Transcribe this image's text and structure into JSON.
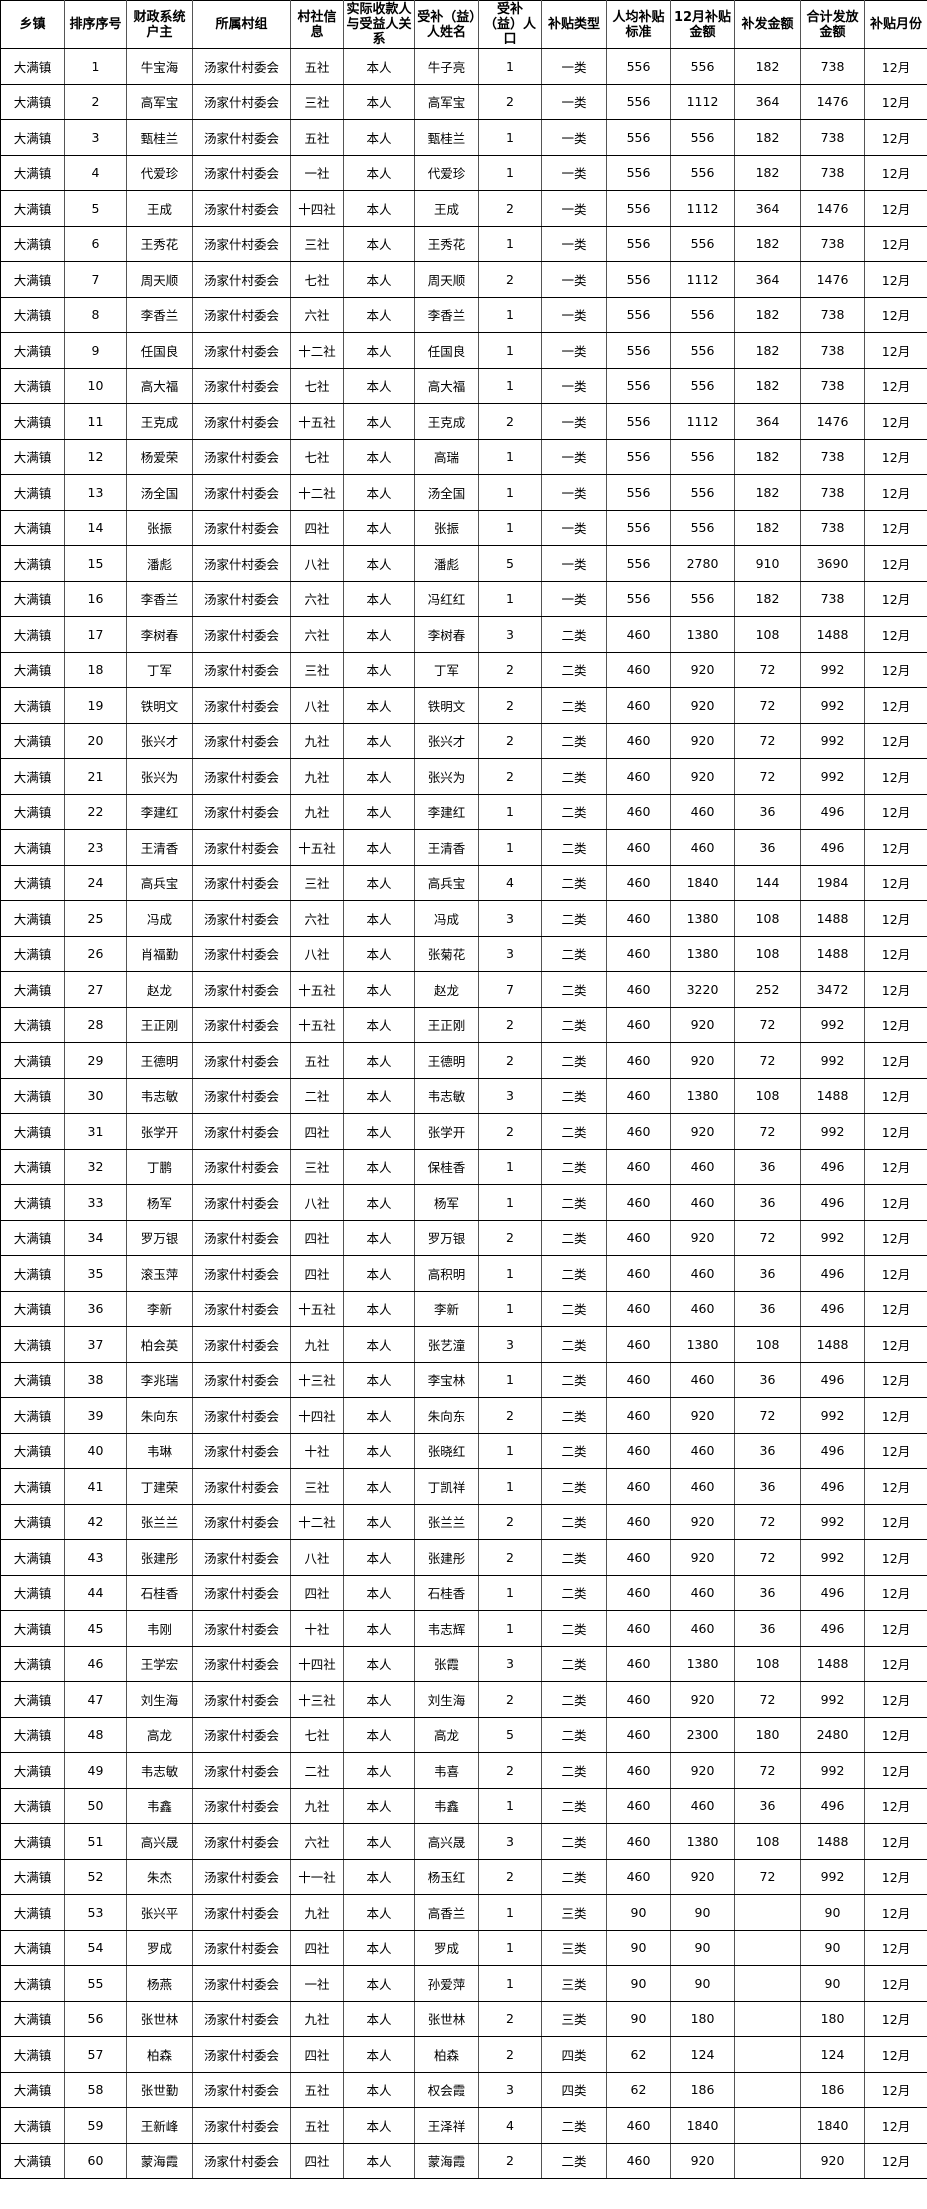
{
  "headers": [
    "乡镇",
    "排序序号",
    "财政系统户主",
    "所属村组",
    "村社信息",
    "实际收款人与受益人关系",
    "受补（益）人姓名",
    "受补（益）人口",
    "补贴类型",
    "人均补贴标准",
    "12月补贴金额",
    "补发金额",
    "合计发放金额",
    "补贴月份"
  ],
  "rows": [
    [
      "大满镇",
      "1",
      "牛宝海",
      "汤家什村委会",
      "五社",
      "本人",
      "牛子亮",
      "1",
      "一类",
      "556",
      "556",
      "182",
      "738",
      "12月"
    ],
    [
      "大满镇",
      "2",
      "高军宝",
      "汤家什村委会",
      "三社",
      "本人",
      "高军宝",
      "2",
      "一类",
      "556",
      "1112",
      "364",
      "1476",
      "12月"
    ],
    [
      "大满镇",
      "3",
      "甄桂兰",
      "汤家什村委会",
      "五社",
      "本人",
      "甄桂兰",
      "1",
      "一类",
      "556",
      "556",
      "182",
      "738",
      "12月"
    ],
    [
      "大满镇",
      "4",
      "代爱珍",
      "汤家什村委会",
      "一社",
      "本人",
      "代爱珍",
      "1",
      "一类",
      "556",
      "556",
      "182",
      "738",
      "12月"
    ],
    [
      "大满镇",
      "5",
      "王成",
      "汤家什村委会",
      "十四社",
      "本人",
      "王成",
      "2",
      "一类",
      "556",
      "1112",
      "364",
      "1476",
      "12月"
    ],
    [
      "大满镇",
      "6",
      "王秀花",
      "汤家什村委会",
      "三社",
      "本人",
      "王秀花",
      "1",
      "一类",
      "556",
      "556",
      "182",
      "738",
      "12月"
    ],
    [
      "大满镇",
      "7",
      "周天顺",
      "汤家什村委会",
      "七社",
      "本人",
      "周天顺",
      "2",
      "一类",
      "556",
      "1112",
      "364",
      "1476",
      "12月"
    ],
    [
      "大满镇",
      "8",
      "李香兰",
      "汤家什村委会",
      "六社",
      "本人",
      "李香兰",
      "1",
      "一类",
      "556",
      "556",
      "182",
      "738",
      "12月"
    ],
    [
      "大满镇",
      "9",
      "任国良",
      "汤家什村委会",
      "十二社",
      "本人",
      "任国良",
      "1",
      "一类",
      "556",
      "556",
      "182",
      "738",
      "12月"
    ],
    [
      "大满镇",
      "10",
      "高大福",
      "汤家什村委会",
      "七社",
      "本人",
      "高大福",
      "1",
      "一类",
      "556",
      "556",
      "182",
      "738",
      "12月"
    ],
    [
      "大满镇",
      "11",
      "王克成",
      "汤家什村委会",
      "十五社",
      "本人",
      "王克成",
      "2",
      "一类",
      "556",
      "1112",
      "364",
      "1476",
      "12月"
    ],
    [
      "大满镇",
      "12",
      "杨爱荣",
      "汤家什村委会",
      "七社",
      "本人",
      "高瑞",
      "1",
      "一类",
      "556",
      "556",
      "182",
      "738",
      "12月"
    ],
    [
      "大满镇",
      "13",
      "汤全国",
      "汤家什村委会",
      "十二社",
      "本人",
      "汤全国",
      "1",
      "一类",
      "556",
      "556",
      "182",
      "738",
      "12月"
    ],
    [
      "大满镇",
      "14",
      "张振",
      "汤家什村委会",
      "四社",
      "本人",
      "张振",
      "1",
      "一类",
      "556",
      "556",
      "182",
      "738",
      "12月"
    ],
    [
      "大满镇",
      "15",
      "潘彪",
      "汤家什村委会",
      "八社",
      "本人",
      "潘彪",
      "5",
      "一类",
      "556",
      "2780",
      "910",
      "3690",
      "12月"
    ],
    [
      "大满镇",
      "16",
      "李香兰",
      "汤家什村委会",
      "六社",
      "本人",
      "冯红红",
      "1",
      "一类",
      "556",
      "556",
      "182",
      "738",
      "12月"
    ],
    [
      "大满镇",
      "17",
      "李树春",
      "汤家什村委会",
      "六社",
      "本人",
      "李树春",
      "3",
      "二类",
      "460",
      "1380",
      "108",
      "1488",
      "12月"
    ],
    [
      "大满镇",
      "18",
      "丁军",
      "汤家什村委会",
      "三社",
      "本人",
      "丁军",
      "2",
      "二类",
      "460",
      "920",
      "72",
      "992",
      "12月"
    ],
    [
      "大满镇",
      "19",
      "铁明文",
      "汤家什村委会",
      "八社",
      "本人",
      "铁明文",
      "2",
      "二类",
      "460",
      "920",
      "72",
      "992",
      "12月"
    ],
    [
      "大满镇",
      "20",
      "张兴才",
      "汤家什村委会",
      "九社",
      "本人",
      "张兴才",
      "2",
      "二类",
      "460",
      "920",
      "72",
      "992",
      "12月"
    ],
    [
      "大满镇",
      "21",
      "张兴为",
      "汤家什村委会",
      "九社",
      "本人",
      "张兴为",
      "2",
      "二类",
      "460",
      "920",
      "72",
      "992",
      "12月"
    ],
    [
      "大满镇",
      "22",
      "李建红",
      "汤家什村委会",
      "九社",
      "本人",
      "李建红",
      "1",
      "二类",
      "460",
      "460",
      "36",
      "496",
      "12月"
    ],
    [
      "大满镇",
      "23",
      "王清香",
      "汤家什村委会",
      "十五社",
      "本人",
      "王清香",
      "1",
      "二类",
      "460",
      "460",
      "36",
      "496",
      "12月"
    ],
    [
      "大满镇",
      "24",
      "高兵宝",
      "汤家什村委会",
      "三社",
      "本人",
      "高兵宝",
      "4",
      "二类",
      "460",
      "1840",
      "144",
      "1984",
      "12月"
    ],
    [
      "大满镇",
      "25",
      "冯成",
      "汤家什村委会",
      "六社",
      "本人",
      "冯成",
      "3",
      "二类",
      "460",
      "1380",
      "108",
      "1488",
      "12月"
    ],
    [
      "大满镇",
      "26",
      "肖福勤",
      "汤家什村委会",
      "八社",
      "本人",
      "张菊花",
      "3",
      "二类",
      "460",
      "1380",
      "108",
      "1488",
      "12月"
    ],
    [
      "大满镇",
      "27",
      "赵龙",
      "汤家什村委会",
      "十五社",
      "本人",
      "赵龙",
      "7",
      "二类",
      "460",
      "3220",
      "252",
      "3472",
      "12月"
    ],
    [
      "大满镇",
      "28",
      "王正刚",
      "汤家什村委会",
      "十五社",
      "本人",
      "王正刚",
      "2",
      "二类",
      "460",
      "920",
      "72",
      "992",
      "12月"
    ],
    [
      "大满镇",
      "29",
      "王德明",
      "汤家什村委会",
      "五社",
      "本人",
      "王德明",
      "2",
      "二类",
      "460",
      "920",
      "72",
      "992",
      "12月"
    ],
    [
      "大满镇",
      "30",
      "韦志敏",
      "汤家什村委会",
      "二社",
      "本人",
      "韦志敏",
      "3",
      "二类",
      "460",
      "1380",
      "108",
      "1488",
      "12月"
    ],
    [
      "大满镇",
      "31",
      "张学开",
      "汤家什村委会",
      "四社",
      "本人",
      "张学开",
      "2",
      "二类",
      "460",
      "920",
      "72",
      "992",
      "12月"
    ],
    [
      "大满镇",
      "32",
      "丁鹏",
      "汤家什村委会",
      "三社",
      "本人",
      "保桂香",
      "1",
      "二类",
      "460",
      "460",
      "36",
      "496",
      "12月"
    ],
    [
      "大满镇",
      "33",
      "杨军",
      "汤家什村委会",
      "八社",
      "本人",
      "杨军",
      "1",
      "二类",
      "460",
      "460",
      "36",
      "496",
      "12月"
    ],
    [
      "大满镇",
      "34",
      "罗万银",
      "汤家什村委会",
      "四社",
      "本人",
      "罗万银",
      "2",
      "二类",
      "460",
      "920",
      "72",
      "992",
      "12月"
    ],
    [
      "大满镇",
      "35",
      "滚玉萍",
      "汤家什村委会",
      "四社",
      "本人",
      "高积明",
      "1",
      "二类",
      "460",
      "460",
      "36",
      "496",
      "12月"
    ],
    [
      "大满镇",
      "36",
      "李新",
      "汤家什村委会",
      "十五社",
      "本人",
      "李新",
      "1",
      "二类",
      "460",
      "460",
      "36",
      "496",
      "12月"
    ],
    [
      "大满镇",
      "37",
      "柏会英",
      "汤家什村委会",
      "九社",
      "本人",
      "张艺潼",
      "3",
      "二类",
      "460",
      "1380",
      "108",
      "1488",
      "12月"
    ],
    [
      "大满镇",
      "38",
      "李兆瑞",
      "汤家什村委会",
      "十三社",
      "本人",
      "李宝林",
      "1",
      "二类",
      "460",
      "460",
      "36",
      "496",
      "12月"
    ],
    [
      "大满镇",
      "39",
      "朱向东",
      "汤家什村委会",
      "十四社",
      "本人",
      "朱向东",
      "2",
      "二类",
      "460",
      "920",
      "72",
      "992",
      "12月"
    ],
    [
      "大满镇",
      "40",
      "韦琳",
      "汤家什村委会",
      "十社",
      "本人",
      "张晓红",
      "1",
      "二类",
      "460",
      "460",
      "36",
      "496",
      "12月"
    ],
    [
      "大满镇",
      "41",
      "丁建荣",
      "汤家什村委会",
      "三社",
      "本人",
      "丁凯祥",
      "1",
      "二类",
      "460",
      "460",
      "36",
      "496",
      "12月"
    ],
    [
      "大满镇",
      "42",
      "张兰兰",
      "汤家什村委会",
      "十二社",
      "本人",
      "张兰兰",
      "2",
      "二类",
      "460",
      "920",
      "72",
      "992",
      "12月"
    ],
    [
      "大满镇",
      "43",
      "张建彤",
      "汤家什村委会",
      "八社",
      "本人",
      "张建彤",
      "2",
      "二类",
      "460",
      "920",
      "72",
      "992",
      "12月"
    ],
    [
      "大满镇",
      "44",
      "石桂香",
      "汤家什村委会",
      "四社",
      "本人",
      "石桂香",
      "1",
      "二类",
      "460",
      "460",
      "36",
      "496",
      "12月"
    ],
    [
      "大满镇",
      "45",
      "韦刚",
      "汤家什村委会",
      "十社",
      "本人",
      "韦志辉",
      "1",
      "二类",
      "460",
      "460",
      "36",
      "496",
      "12月"
    ],
    [
      "大满镇",
      "46",
      "王学宏",
      "汤家什村委会",
      "十四社",
      "本人",
      "张霞",
      "3",
      "二类",
      "460",
      "1380",
      "108",
      "1488",
      "12月"
    ],
    [
      "大满镇",
      "47",
      "刘生海",
      "汤家什村委会",
      "十三社",
      "本人",
      "刘生海",
      "2",
      "二类",
      "460",
      "920",
      "72",
      "992",
      "12月"
    ],
    [
      "大满镇",
      "48",
      "高龙",
      "汤家什村委会",
      "七社",
      "本人",
      "高龙",
      "5",
      "二类",
      "460",
      "2300",
      "180",
      "2480",
      "12月"
    ],
    [
      "大满镇",
      "49",
      "韦志敏",
      "汤家什村委会",
      "二社",
      "本人",
      "韦喜",
      "2",
      "二类",
      "460",
      "920",
      "72",
      "992",
      "12月"
    ],
    [
      "大满镇",
      "50",
      "韦鑫",
      "汤家什村委会",
      "九社",
      "本人",
      "韦鑫",
      "1",
      "二类",
      "460",
      "460",
      "36",
      "496",
      "12月"
    ],
    [
      "大满镇",
      "51",
      "高兴晟",
      "汤家什村委会",
      "六社",
      "本人",
      "高兴晟",
      "3",
      "二类",
      "460",
      "1380",
      "108",
      "1488",
      "12月"
    ],
    [
      "大满镇",
      "52",
      "朱杰",
      "汤家什村委会",
      "十一社",
      "本人",
      "杨玉红",
      "2",
      "二类",
      "460",
      "920",
      "72",
      "992",
      "12月"
    ],
    [
      "大满镇",
      "53",
      "张兴平",
      "汤家什村委会",
      "九社",
      "本人",
      "高香兰",
      "1",
      "三类",
      "90",
      "90",
      "",
      "90",
      "12月"
    ],
    [
      "大满镇",
      "54",
      "罗成",
      "汤家什村委会",
      "四社",
      "本人",
      "罗成",
      "1",
      "三类",
      "90",
      "90",
      "",
      "90",
      "12月"
    ],
    [
      "大满镇",
      "55",
      "杨燕",
      "汤家什村委会",
      "一社",
      "本人",
      "孙爱萍",
      "1",
      "三类",
      "90",
      "90",
      "",
      "90",
      "12月"
    ],
    [
      "大满镇",
      "56",
      "张世林",
      "汤家什村委会",
      "九社",
      "本人",
      "张世林",
      "2",
      "三类",
      "90",
      "180",
      "",
      "180",
      "12月"
    ],
    [
      "大满镇",
      "57",
      "柏森",
      "汤家什村委会",
      "四社",
      "本人",
      "柏森",
      "2",
      "四类",
      "62",
      "124",
      "",
      "124",
      "12月"
    ],
    [
      "大满镇",
      "58",
      "张世勤",
      "汤家什村委会",
      "五社",
      "本人",
      "权会霞",
      "3",
      "四类",
      "62",
      "186",
      "",
      "186",
      "12月"
    ],
    [
      "大满镇",
      "59",
      "王新峰",
      "汤家什村委会",
      "五社",
      "本人",
      "王泽祥",
      "4",
      "二类",
      "460",
      "1840",
      "",
      "1840",
      "12月"
    ],
    [
      "大满镇",
      "60",
      "蒙海霞",
      "汤家什村委会",
      "四社",
      "本人",
      "蒙海霞",
      "2",
      "二类",
      "460",
      "920",
      "",
      "920",
      "12月"
    ]
  ]
}
